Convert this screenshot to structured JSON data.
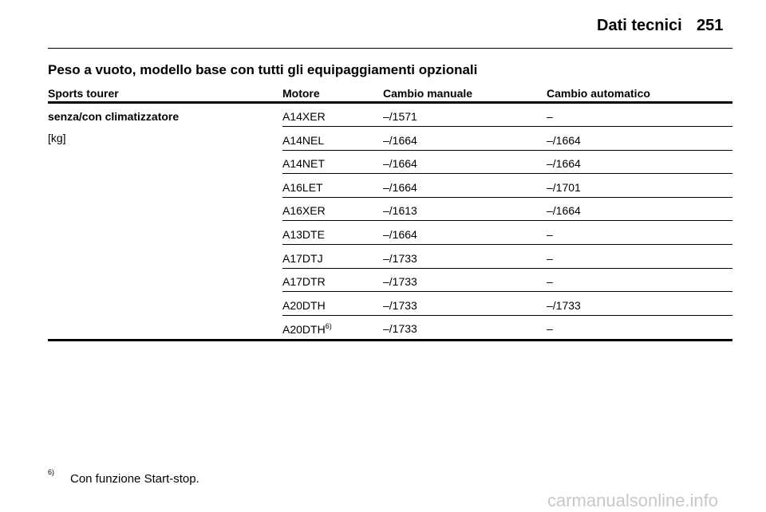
{
  "header": {
    "title": "Dati tecnici",
    "page_number": "251"
  },
  "section_title": "Peso a vuoto, modello base con tutti gli equipaggiamenti opzionali",
  "table": {
    "columns": [
      "Sports tourer",
      "Motore",
      "Cambio manuale",
      "Cambio automatico"
    ],
    "row_label": "senza/con climatizzatore",
    "row_unit": "[kg]",
    "rows": [
      {
        "motor": "A14XER",
        "manual": "–/1571",
        "automatic": "–"
      },
      {
        "motor": "A14NEL",
        "manual": "–/1664",
        "automatic": "–/1664"
      },
      {
        "motor": "A14NET",
        "manual": "–/1664",
        "automatic": "–/1664"
      },
      {
        "motor": "A16LET",
        "manual": "–/1664",
        "automatic": "–/1701"
      },
      {
        "motor": "A16XER",
        "manual": "–/1613",
        "automatic": "–/1664"
      },
      {
        "motor": "A13DTE",
        "manual": "–/1664",
        "automatic": "–"
      },
      {
        "motor": "A17DTJ",
        "manual": "–/1733",
        "automatic": "–"
      },
      {
        "motor": "A17DTR",
        "manual": "–/1733",
        "automatic": "–"
      },
      {
        "motor": "A20DTH",
        "manual": "–/1733",
        "automatic": "–/1733"
      },
      {
        "motor": "A20DTH",
        "footnote_ref": "6)",
        "manual": "–/1733",
        "automatic": "–"
      }
    ]
  },
  "footnote": {
    "marker": "6)",
    "text": "Con funzione Start-stop."
  },
  "watermark": "carmanualsonline.info"
}
